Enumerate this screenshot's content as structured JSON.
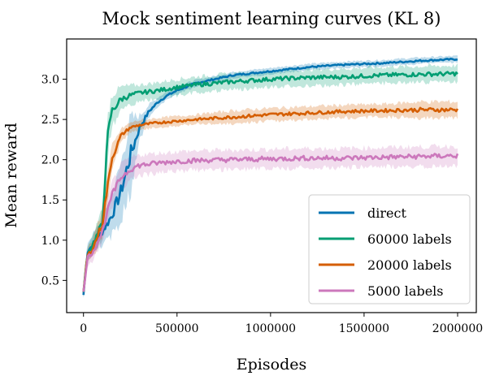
{
  "chart_data": {
    "type": "line",
    "title": "Mock sentiment learning curves (KL 8)",
    "xlabel": "Episodes",
    "ylabel": "Mean reward",
    "xlim": [
      -90000,
      2100000
    ],
    "ylim": [
      0.1,
      3.5
    ],
    "x_ticks": [
      0,
      500000,
      1000000,
      1500000,
      2000000
    ],
    "x_tick_labels": [
      "0",
      "500000",
      "1000000",
      "1500000",
      "2000000"
    ],
    "y_ticks": [
      0.5,
      1.0,
      1.5,
      2.0,
      2.5,
      3.0
    ],
    "y_tick_labels": [
      "0.5",
      "1.0",
      "1.5",
      "2.0",
      "2.5",
      "3.0"
    ],
    "grid": false,
    "legend_position": "lower-right",
    "series": [
      {
        "name": "direct",
        "color": "#0173b2",
        "x": [
          0,
          20000,
          50000,
          100000,
          150000,
          200000,
          250000,
          300000,
          350000,
          400000,
          450000,
          500000,
          600000,
          700000,
          800000,
          1000000,
          1200000,
          1400000,
          1600000,
          1800000,
          2000000
        ],
        "y": [
          0.32,
          0.85,
          0.95,
          1.1,
          1.3,
          1.6,
          2.05,
          2.4,
          2.6,
          2.72,
          2.8,
          2.86,
          2.95,
          3.0,
          3.05,
          3.1,
          3.15,
          3.18,
          3.2,
          3.23,
          3.25
        ],
        "band": [
          0.05,
          0.12,
          0.12,
          0.15,
          0.25,
          0.35,
          0.45,
          0.15,
          0.08,
          0.06,
          0.05,
          0.05,
          0.04,
          0.04,
          0.04,
          0.04,
          0.04,
          0.04,
          0.04,
          0.04,
          0.04
        ]
      },
      {
        "name": "60000 labels",
        "color": "#029e73",
        "x": [
          0,
          20000,
          50000,
          100000,
          130000,
          150000,
          200000,
          250000,
          300000,
          400000,
          500000,
          600000,
          800000,
          1000000,
          1200000,
          1400000,
          1600000,
          1800000,
          2000000
        ],
        "y": [
          0.35,
          0.82,
          0.95,
          1.2,
          2.3,
          2.6,
          2.75,
          2.8,
          2.83,
          2.86,
          2.9,
          2.93,
          2.97,
          3.0,
          3.02,
          3.03,
          3.05,
          3.06,
          3.07
        ],
        "band": [
          0.05,
          0.1,
          0.1,
          0.2,
          0.25,
          0.2,
          0.15,
          0.12,
          0.1,
          0.1,
          0.1,
          0.1,
          0.1,
          0.1,
          0.1,
          0.1,
          0.1,
          0.1,
          0.1
        ]
      },
      {
        "name": "20000 labels",
        "color": "#d55e00",
        "x": [
          0,
          20000,
          50000,
          100000,
          150000,
          200000,
          250000,
          300000,
          400000,
          500000,
          600000,
          800000,
          1000000,
          1200000,
          1400000,
          1600000,
          1800000,
          2000000
        ],
        "y": [
          0.35,
          0.8,
          0.9,
          1.2,
          2.0,
          2.3,
          2.4,
          2.43,
          2.46,
          2.48,
          2.5,
          2.53,
          2.56,
          2.58,
          2.6,
          2.61,
          2.62,
          2.62
        ],
        "band": [
          0.05,
          0.1,
          0.1,
          0.2,
          0.15,
          0.08,
          0.06,
          0.06,
          0.06,
          0.06,
          0.06,
          0.08,
          0.08,
          0.08,
          0.08,
          0.08,
          0.1,
          0.1
        ]
      },
      {
        "name": "5000 labels",
        "color": "#cc78bc",
        "x": [
          0,
          20000,
          50000,
          100000,
          150000,
          200000,
          250000,
          300000,
          400000,
          500000,
          600000,
          800000,
          1000000,
          1200000,
          1400000,
          1600000,
          1800000,
          2000000
        ],
        "y": [
          0.35,
          0.78,
          0.85,
          1.1,
          1.55,
          1.78,
          1.88,
          1.93,
          1.96,
          1.98,
          1.99,
          2.0,
          2.01,
          2.02,
          2.02,
          2.03,
          2.04,
          2.05
        ],
        "band": [
          0.05,
          0.1,
          0.1,
          0.12,
          0.15,
          0.15,
          0.14,
          0.13,
          0.12,
          0.12,
          0.12,
          0.12,
          0.12,
          0.12,
          0.12,
          0.12,
          0.12,
          0.12
        ]
      }
    ]
  }
}
